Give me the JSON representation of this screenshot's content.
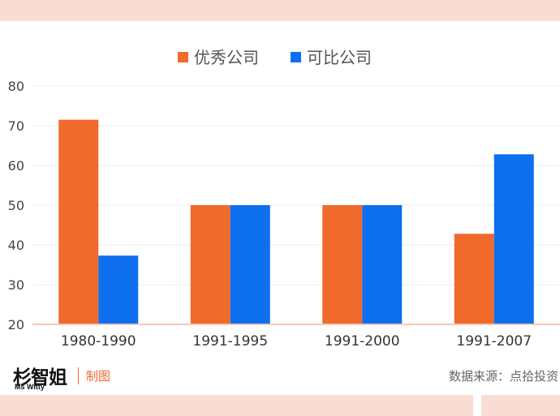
{
  "colors": {
    "series_1": "#f06a2c",
    "series_2": "#0e6fef",
    "band": "#f9dcd4",
    "accent": "#f0682f"
  },
  "chart_data": {
    "type": "bar",
    "categories": [
      "1980-1990",
      "1991-1995",
      "1991-2000",
      "1991-2007"
    ],
    "series": [
      {
        "name": "优秀公司",
        "values": [
          71.5,
          50,
          50,
          42.8
        ]
      },
      {
        "name": "可比公司",
        "values": [
          37.3,
          50,
          50,
          62.8
        ]
      }
    ],
    "ylim": [
      20,
      80
    ],
    "yticks": [
      20,
      30,
      40,
      50,
      60,
      70,
      80
    ],
    "legend_position": "top-center",
    "grid": true
  },
  "footer": {
    "logo_main": "杉智姐",
    "logo_sub": "Ms Witty",
    "maker": "制图",
    "source": "数据来源：点拾投资"
  }
}
